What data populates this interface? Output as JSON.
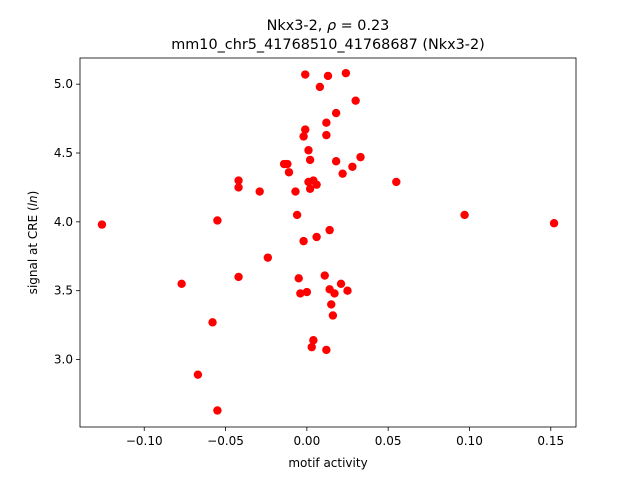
{
  "chart_data": {
    "type": "scatter",
    "title_line1": "Nkx3-2, ρ = 0.23",
    "title_line2": "mm10_chr5_41768510_41768687 (Nkx3-2)",
    "xlabel": "motif activity",
    "ylabel": "signal at CRE (ln)",
    "xlim": [
      -0.1395,
      0.1655
    ],
    "ylim": [
      2.51,
      5.19
    ],
    "xticks": [
      -0.1,
      -0.05,
      0.0,
      0.05,
      0.1,
      0.15
    ],
    "xtick_labels": [
      "−0.10",
      "−0.05",
      "0.00",
      "0.05",
      "0.10",
      "0.15"
    ],
    "yticks": [
      3.0,
      3.5,
      4.0,
      4.5,
      5.0
    ],
    "ytick_labels": [
      "3.0",
      "3.5",
      "4.0",
      "4.5",
      "5.0"
    ],
    "grid": false,
    "marker_color": "#ff0000",
    "points": [
      [
        -0.126,
        3.98
      ],
      [
        -0.077,
        3.55
      ],
      [
        -0.067,
        2.89
      ],
      [
        -0.058,
        3.27
      ],
      [
        -0.055,
        4.01
      ],
      [
        -0.055,
        2.63
      ],
      [
        -0.042,
        4.3
      ],
      [
        -0.042,
        4.25
      ],
      [
        -0.042,
        3.6
      ],
      [
        -0.029,
        4.22
      ],
      [
        -0.024,
        3.74
      ],
      [
        -0.014,
        4.42
      ],
      [
        -0.012,
        4.42
      ],
      [
        -0.011,
        4.36
      ],
      [
        -0.007,
        4.22
      ],
      [
        -0.006,
        4.05
      ],
      [
        -0.005,
        3.59
      ],
      [
        -0.004,
        3.48
      ],
      [
        -0.002,
        3.86
      ],
      [
        -0.002,
        4.62
      ],
      [
        -0.001,
        4.67
      ],
      [
        -0.001,
        5.07
      ],
      [
        0.0,
        3.49
      ],
      [
        0.001,
        4.52
      ],
      [
        0.001,
        4.29
      ],
      [
        0.002,
        4.45
      ],
      [
        0.002,
        4.24
      ],
      [
        0.003,
        3.09
      ],
      [
        0.004,
        4.3
      ],
      [
        0.004,
        3.14
      ],
      [
        0.006,
        4.27
      ],
      [
        0.006,
        3.89
      ],
      [
        0.008,
        4.98
      ],
      [
        0.011,
        3.61
      ],
      [
        0.012,
        3.07
      ],
      [
        0.012,
        4.72
      ],
      [
        0.012,
        4.63
      ],
      [
        0.013,
        5.06
      ],
      [
        0.014,
        3.94
      ],
      [
        0.014,
        3.51
      ],
      [
        0.015,
        3.4
      ],
      [
        0.016,
        3.32
      ],
      [
        0.017,
        3.48
      ],
      [
        0.018,
        4.44
      ],
      [
        0.018,
        4.79
      ],
      [
        0.021,
        3.55
      ],
      [
        0.022,
        4.35
      ],
      [
        0.024,
        5.08
      ],
      [
        0.025,
        3.5
      ],
      [
        0.028,
        4.4
      ],
      [
        0.03,
        4.88
      ],
      [
        0.033,
        4.47
      ],
      [
        0.055,
        4.29
      ],
      [
        0.097,
        4.05
      ],
      [
        0.152,
        3.99
      ]
    ]
  }
}
